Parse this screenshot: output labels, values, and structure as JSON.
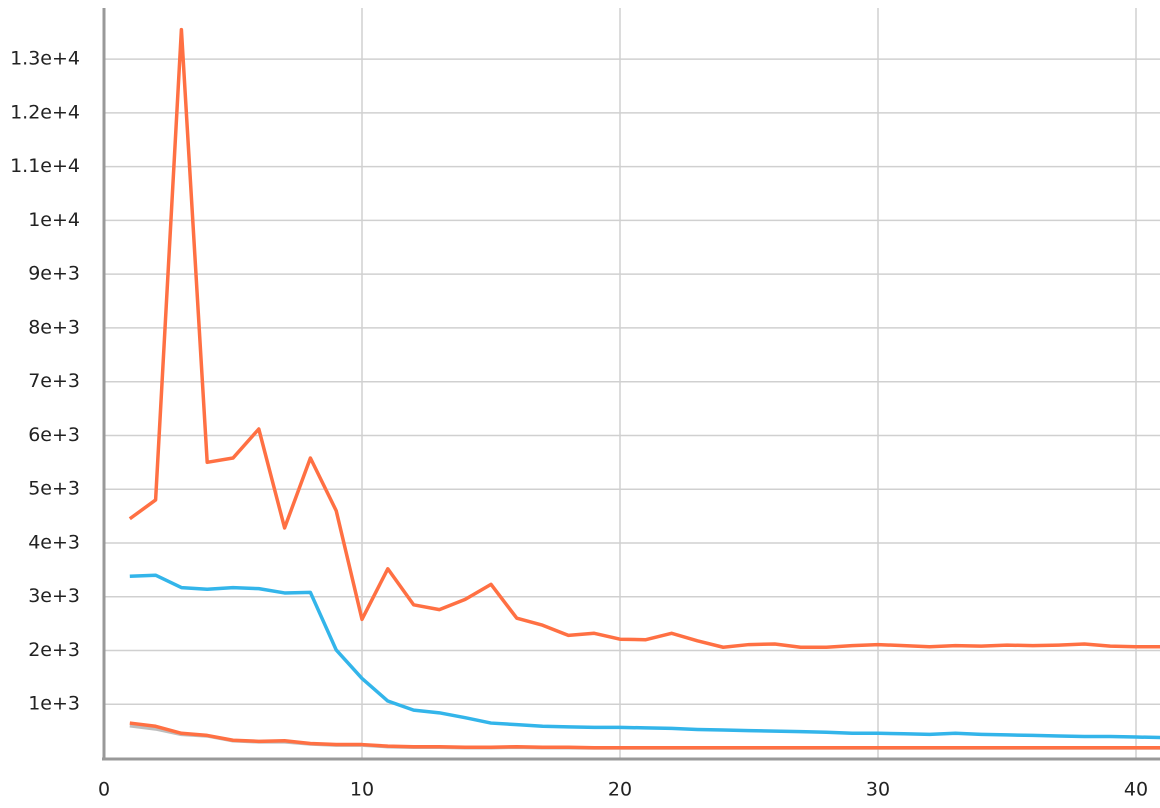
{
  "chart_data": {
    "type": "line",
    "x": [
      1,
      2,
      3,
      4,
      5,
      6,
      7,
      8,
      9,
      10,
      11,
      12,
      13,
      14,
      15,
      16,
      17,
      18,
      19,
      20,
      21,
      22,
      23,
      24,
      25,
      26,
      27,
      28,
      29,
      30,
      31,
      32,
      33,
      34,
      35,
      36,
      37,
      38,
      39,
      40,
      41
    ],
    "series": [
      {
        "color": "#bdbdbd",
        "values": [
          600,
          540,
          440,
          410,
          320,
          300,
          300,
          260,
          240,
          240,
          210,
          200,
          200,
          190,
          190,
          200,
          190,
          190,
          185,
          185,
          185,
          185,
          185,
          185,
          185,
          185,
          185,
          185,
          185,
          185,
          185,
          185,
          185,
          185,
          185,
          185,
          185,
          185,
          185,
          185,
          185
        ]
      },
      {
        "color": "#ff7043",
        "values": [
          650,
          590,
          460,
          420,
          330,
          310,
          320,
          270,
          250,
          250,
          220,
          210,
          210,
          200,
          200,
          210,
          200,
          200,
          190,
          190,
          190,
          190,
          190,
          190,
          190,
          190,
          190,
          190,
          190,
          190,
          190,
          190,
          190,
          190,
          190,
          190,
          190,
          190,
          190,
          190,
          190
        ]
      },
      {
        "color": "#33b5ea",
        "values": [
          3380,
          3400,
          3170,
          3140,
          3170,
          3150,
          3070,
          3080,
          2010,
          1480,
          1060,
          890,
          840,
          750,
          650,
          620,
          590,
          580,
          570,
          570,
          560,
          550,
          530,
          520,
          510,
          500,
          490,
          480,
          460,
          460,
          450,
          440,
          460,
          440,
          430,
          420,
          410,
          400,
          400,
          390,
          380
        ]
      },
      {
        "color": "#ff7043",
        "values": [
          4450,
          4800,
          13550,
          5500,
          5580,
          6120,
          4280,
          5580,
          4600,
          2580,
          3520,
          2850,
          2760,
          2950,
          3230,
          2600,
          2470,
          2280,
          2320,
          2210,
          2200,
          2320,
          2180,
          2060,
          2110,
          2120,
          2060,
          2060,
          2090,
          2110,
          2090,
          2070,
          2090,
          2080,
          2100,
          2090,
          2100,
          2120,
          2080,
          2070,
          2070
        ]
      }
    ],
    "xlim": [
      0,
      40.93
    ],
    "xticks": [
      0,
      10,
      20,
      30,
      40
    ],
    "ylim": [
      0,
      14100
    ],
    "yticks": [
      {
        "value": 1000,
        "label": "1e+3"
      },
      {
        "value": 2000,
        "label": "2e+3"
      },
      {
        "value": 3000,
        "label": "3e+3"
      },
      {
        "value": 4000,
        "label": "4e+3"
      },
      {
        "value": 5000,
        "label": "5e+3"
      },
      {
        "value": 6000,
        "label": "6e+3"
      },
      {
        "value": 7000,
        "label": "7e+3"
      },
      {
        "value": 8000,
        "label": "8e+3"
      },
      {
        "value": 9000,
        "label": "9e+3"
      },
      {
        "value": 10000,
        "label": "1e+4"
      },
      {
        "value": 11000,
        "label": "1.1e+4"
      },
      {
        "value": 12000,
        "label": "1.2e+4"
      },
      {
        "value": 13000,
        "label": "1.3e+4"
      }
    ],
    "grid": true
  }
}
